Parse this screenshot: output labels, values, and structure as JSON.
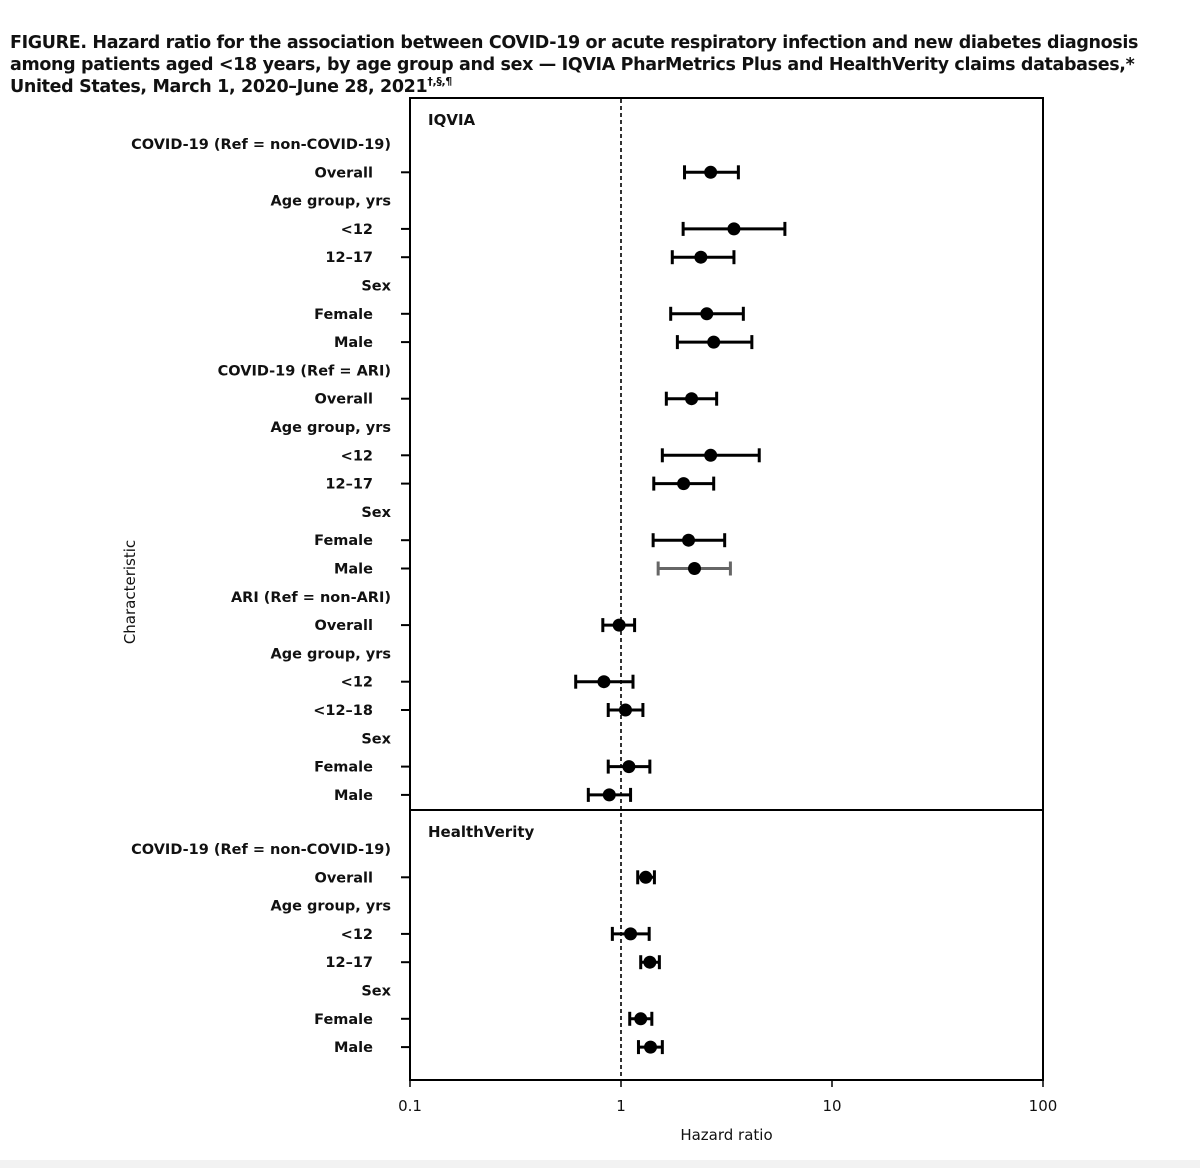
{
  "title": {
    "main": "FIGURE. Hazard ratio for the association between COVID-19 or acute respiratory infection and new diabetes diagnosis among patients aged <18 years, by age group and sex — IQVIA PharMetrics Plus and HealthVerity claims databases,* United States, March 1, 2020–June 28, 2021",
    "footnote_marks": "†,§,¶"
  },
  "chart_data": {
    "type": "forest",
    "title": "Hazard ratio for the association between COVID-19 or acute respiratory infection and new diabetes diagnosis among patients aged <18 years, by age group and sex",
    "xlabel": "Hazard ratio",
    "ylabel": "Characteristic",
    "xscale": "log",
    "xlim": [
      0.1,
      100
    ],
    "xticks": [
      {
        "value": 0.1,
        "label": "0.1"
      },
      {
        "value": 1,
        "label": "1"
      },
      {
        "value": 10,
        "label": "10"
      },
      {
        "value": 100,
        "label": "100"
      }
    ],
    "reference_line": 1,
    "panels": [
      {
        "name": "IQVIA",
        "rows": [
          {
            "label": "COVID-19 (Ref = non-COVID-19)",
            "header": true
          },
          {
            "label": "Overall",
            "hr": 2.66,
            "lo": 2.0,
            "hi": 3.6
          },
          {
            "label": "Age group, yrs",
            "header": true
          },
          {
            "label": "<12",
            "hr": 3.43,
            "lo": 1.97,
            "hi": 5.98
          },
          {
            "label": "12–17",
            "hr": 2.39,
            "lo": 1.75,
            "hi": 3.43
          },
          {
            "label": "Sex",
            "header": true
          },
          {
            "label": "Female",
            "hr": 2.55,
            "lo": 1.72,
            "hi": 3.8
          },
          {
            "label": "Male",
            "hr": 2.75,
            "lo": 1.85,
            "hi": 4.17
          },
          {
            "label": "COVID-19 (Ref = ARI)",
            "header": true
          },
          {
            "label": "Overall",
            "hr": 2.16,
            "lo": 1.64,
            "hi": 2.84
          },
          {
            "label": "Age group, yrs",
            "header": true
          },
          {
            "label": "<12",
            "hr": 2.66,
            "lo": 1.57,
            "hi": 4.52
          },
          {
            "label": "12–17",
            "hr": 1.98,
            "lo": 1.43,
            "hi": 2.75
          },
          {
            "label": "Sex",
            "header": true
          },
          {
            "label": "Female",
            "hr": 2.09,
            "lo": 1.42,
            "hi": 3.1
          },
          {
            "label": "Male",
            "hr": 2.23,
            "lo": 1.5,
            "hi": 3.3,
            "color": "#666666"
          },
          {
            "label": "ARI (Ref = non-ARI)",
            "header": true
          },
          {
            "label": "Overall",
            "hr": 0.98,
            "lo": 0.82,
            "hi": 1.16
          },
          {
            "label": "Age group, yrs",
            "header": true
          },
          {
            "label": "<12",
            "hr": 0.83,
            "lo": 0.61,
            "hi": 1.14
          },
          {
            "label": "<12–18",
            "hr": 1.05,
            "lo": 0.87,
            "hi": 1.27
          },
          {
            "label": "Sex",
            "header": true
          },
          {
            "label": "Female",
            "hr": 1.09,
            "lo": 0.87,
            "hi": 1.37
          },
          {
            "label": "Male",
            "hr": 0.88,
            "lo": 0.7,
            "hi": 1.11
          }
        ]
      },
      {
        "name": "HealthVerity",
        "rows": [
          {
            "label": "COVID-19 (Ref = non-COVID-19)",
            "header": true
          },
          {
            "label": "Overall",
            "hr": 1.31,
            "lo": 1.2,
            "hi": 1.44
          },
          {
            "label": "Age group, yrs",
            "header": true
          },
          {
            "label": "<12",
            "hr": 1.11,
            "lo": 0.91,
            "hi": 1.36
          },
          {
            "label": "12–17",
            "hr": 1.37,
            "lo": 1.24,
            "hi": 1.52
          },
          {
            "label": "Sex",
            "header": true
          },
          {
            "label": "Female",
            "hr": 1.24,
            "lo": 1.1,
            "hi": 1.4
          },
          {
            "label": "Male",
            "hr": 1.38,
            "lo": 1.21,
            "hi": 1.57
          }
        ]
      }
    ]
  }
}
